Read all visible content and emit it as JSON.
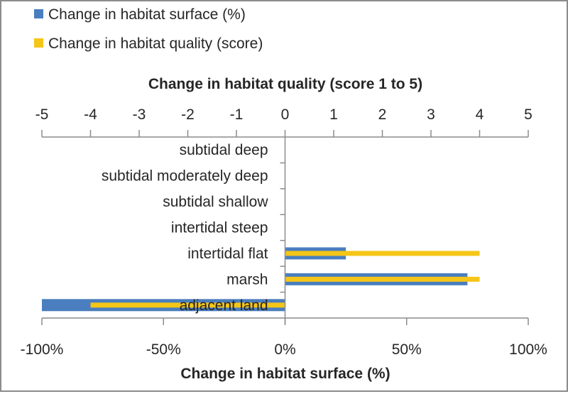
{
  "colors": {
    "surface": "#4a7ebf",
    "quality": "#f5c518",
    "axis": "#8c8c8c",
    "text": "#262626"
  },
  "chart_data": {
    "type": "bar",
    "orientation": "horizontal",
    "categories": [
      "subtidal deep",
      "subtidal moderately deep",
      "subtidal shallow",
      "intertidal steep",
      "intertidal flat",
      "marsh",
      "adjacent land"
    ],
    "series": [
      {
        "name": "Change in habitat surface (%)",
        "axis": "bottom",
        "values": [
          0,
          0,
          0,
          0,
          25,
          75,
          -100
        ]
      },
      {
        "name": "Change in habitat quality (score)",
        "axis": "top",
        "values": [
          0,
          0,
          0,
          0,
          4,
          4,
          -4
        ]
      }
    ],
    "top_axis": {
      "title": "Change in habitat quality (score 1 to 5)",
      "range": [
        -5,
        5
      ],
      "ticks": [
        -5,
        -4,
        -3,
        -2,
        -1,
        0,
        1,
        2,
        3,
        4,
        5
      ],
      "tick_labels": [
        "-5",
        "-4",
        "-3",
        "-2",
        "-1",
        "0",
        "1",
        "2",
        "3",
        "4",
        "5"
      ]
    },
    "bottom_axis": {
      "title": "Change in habitat surface (%)",
      "range": [
        -100,
        100
      ],
      "ticks": [
        -100,
        -50,
        0,
        50,
        100
      ],
      "tick_labels": [
        "-100%",
        "-50%",
        "0%",
        "50%",
        "100%"
      ]
    },
    "legend": {
      "position": "top-left",
      "entries": [
        "Change in habitat surface (%)",
        "Change in habitat quality (score)"
      ]
    },
    "grid": false
  }
}
